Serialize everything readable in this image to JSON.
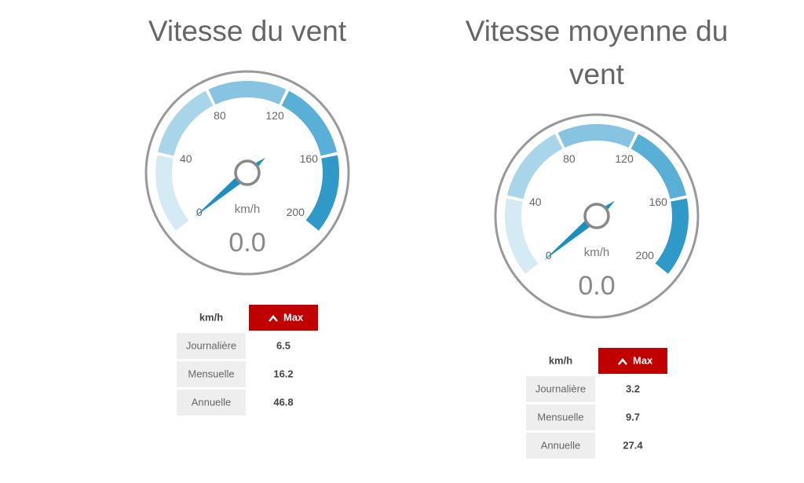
{
  "chart_data": [
    {
      "type": "gauge",
      "title": "Vitesse du vent",
      "unit": "km/h",
      "values": [
        0
      ],
      "value_labels": [
        "0.0"
      ],
      "ylim": [
        0,
        200
      ],
      "yticks": [
        0,
        40,
        80,
        120,
        160,
        200
      ],
      "band_colors": [
        "#d4ebf5",
        "#a8d5ea",
        "#86c4e2",
        "#5aafd7",
        "#2f9ac8"
      ],
      "needle_color": "#1a8fc0",
      "table": {
        "header": [
          "km/h",
          "Max"
        ],
        "rows": [
          [
            "Journalière",
            6.5
          ],
          [
            "Mensuelle",
            16.2
          ],
          [
            "Annuelle",
            46.8
          ]
        ]
      }
    },
    {
      "type": "gauge",
      "title": "Vitesse moyenne du vent",
      "unit": "km/h",
      "values": [
        0
      ],
      "value_labels": [
        "0.0"
      ],
      "ylim": [
        0,
        200
      ],
      "yticks": [
        0,
        40,
        80,
        120,
        160,
        200
      ],
      "band_colors": [
        "#d4ebf5",
        "#a8d5ea",
        "#86c4e2",
        "#5aafd7",
        "#2f9ac8"
      ],
      "needle_color": "#1a8fc0",
      "table": {
        "header": [
          "km/h",
          "Max"
        ],
        "rows": [
          [
            "Journalière",
            3.2
          ],
          [
            "Mensuelle",
            9.7
          ],
          [
            "Annuelle",
            27.4
          ]
        ]
      }
    }
  ]
}
